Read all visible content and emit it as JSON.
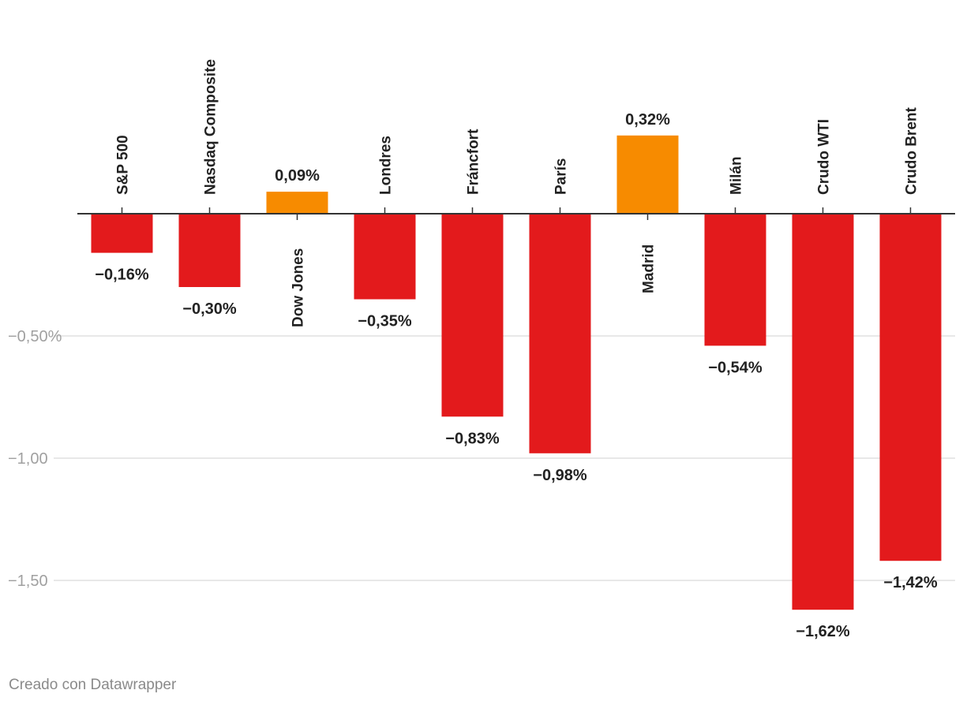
{
  "chart_data": {
    "type": "bar",
    "categories": [
      "S&P 500",
      "Nasdaq Composite",
      "Dow Jones",
      "Londres",
      "Fráncfort",
      "París",
      "Madrid",
      "Milán",
      "Crudo WTI",
      "Crudo Brent"
    ],
    "values": [
      -0.16,
      -0.3,
      0.09,
      -0.35,
      -0.83,
      -0.98,
      0.32,
      -0.54,
      -1.62,
      -1.42
    ],
    "value_labels": [
      "-0,16%",
      "-0,30%",
      "0,09%",
      "-0,35%",
      "-0,83%",
      "-0,98%",
      "0,32%",
      "-0,54%",
      "-1,62%",
      "-1,42%"
    ],
    "y_ticks": [
      {
        "value": -0.5,
        "label": "-0,50%"
      },
      {
        "value": -1.0,
        "label": "-1,00"
      },
      {
        "value": -1.5,
        "label": "-1,50"
      }
    ],
    "ylim": [
      -1.62,
      0.32
    ],
    "grid": true,
    "colors": {
      "negative": "#e31a1c",
      "positive": "#f78b00",
      "gridline": "#e0e0e0",
      "axis": "#333333"
    }
  },
  "footer": {
    "credit": "Creado con Datawrapper"
  }
}
